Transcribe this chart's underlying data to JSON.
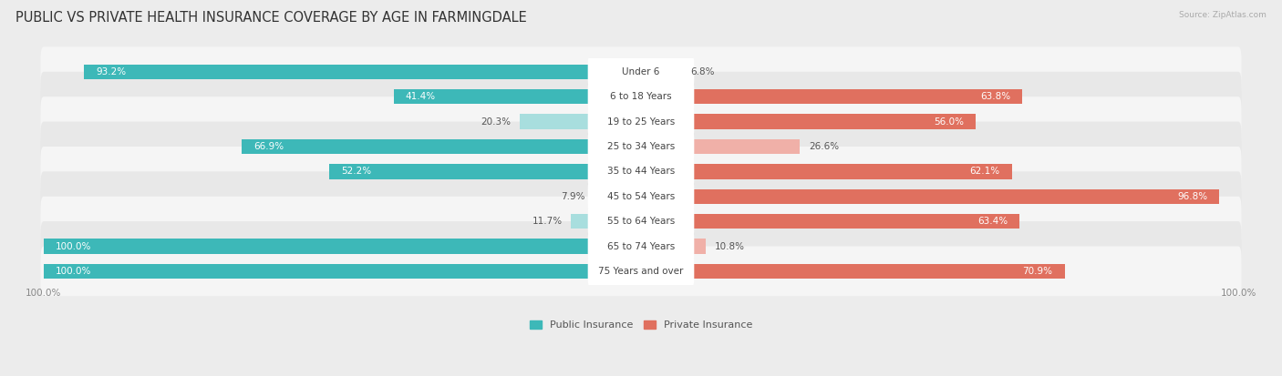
{
  "title": "PUBLIC VS PRIVATE HEALTH INSURANCE COVERAGE BY AGE IN FARMINGDALE",
  "source": "Source: ZipAtlas.com",
  "categories": [
    "Under 6",
    "6 to 18 Years",
    "19 to 25 Years",
    "25 to 34 Years",
    "35 to 44 Years",
    "45 to 54 Years",
    "55 to 64 Years",
    "65 to 74 Years",
    "75 Years and over"
  ],
  "public_values": [
    93.2,
    41.4,
    20.3,
    66.9,
    52.2,
    7.9,
    11.7,
    100.0,
    100.0
  ],
  "private_values": [
    6.8,
    63.8,
    56.0,
    26.6,
    62.1,
    96.8,
    63.4,
    10.8,
    70.9
  ],
  "public_color_strong": "#3db8b8",
  "public_color_light": "#a8dede",
  "private_color_strong": "#e0705f",
  "private_color_light": "#f0b0a8",
  "bg_color": "#ececec",
  "row_bg_even": "#f5f5f5",
  "row_bg_odd": "#e8e8e8",
  "max_val": 100.0,
  "title_fontsize": 10.5,
  "label_fontsize": 7.5,
  "tick_fontsize": 7.5,
  "legend_fontsize": 8,
  "strong_threshold": 40
}
